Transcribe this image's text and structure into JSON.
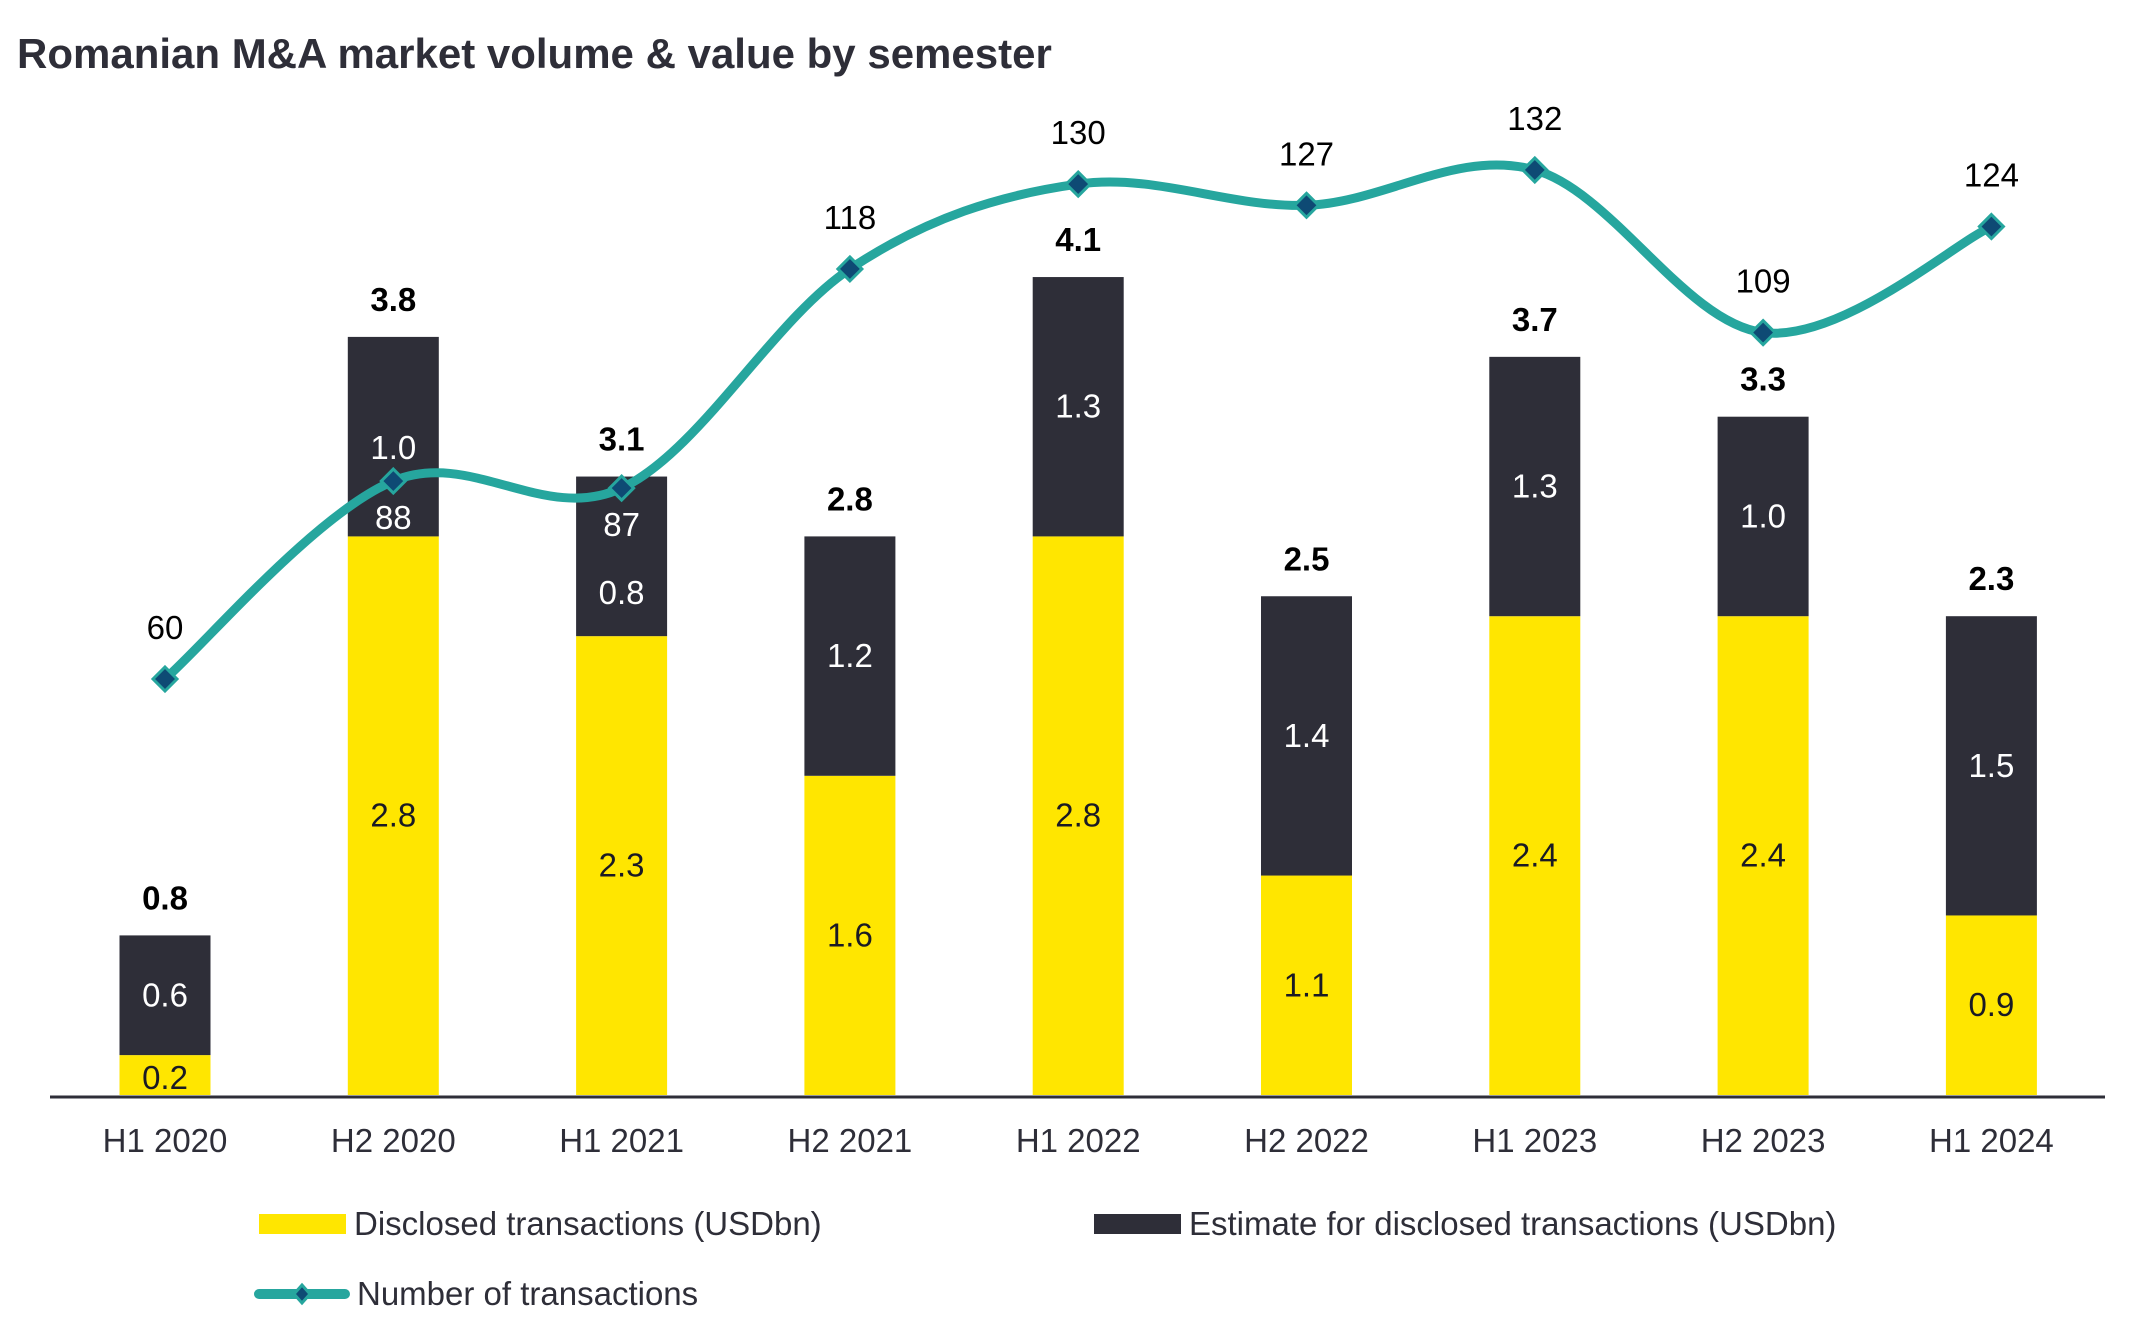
{
  "chart_data": {
    "type": "bar",
    "title": "Romanian M&A market volume & value by semester",
    "xlabel": "",
    "ylabel": "",
    "categories": [
      "H1 2020",
      "H2 2020",
      "H1 2021",
      "H2 2021",
      "H1 2022",
      "H2 2022",
      "H1 2023",
      "H2 2023",
      "H1 2024"
    ],
    "series": [
      {
        "name": "Disclosed transactions (USDbn)",
        "kind": "stacked-bar",
        "color": "#ffe600",
        "values": [
          0.2,
          2.8,
          2.3,
          1.6,
          2.8,
          1.1,
          2.4,
          2.4,
          0.9
        ]
      },
      {
        "name": "Estimate for disclosed transactions (USDbn)",
        "kind": "stacked-bar",
        "color": "#2e2e38",
        "values": [
          0.6,
          1.0,
          0.8,
          1.2,
          1.3,
          1.4,
          1.3,
          1.0,
          1.5
        ]
      },
      {
        "name": "Number of transactions",
        "kind": "line",
        "color": "#26a69e",
        "marker_color": "#0e4a74",
        "values": [
          60,
          88,
          87,
          118,
          130,
          127,
          132,
          109,
          124
        ]
      }
    ],
    "totals": [
      "0.8",
      "3.8",
      "3.1",
      "2.8",
      "4.1",
      "2.5",
      "3.7",
      "3.3",
      "2.3"
    ],
    "bar_labels": {
      "disclosed": [
        "0.2",
        "2.8",
        "2.3",
        "1.6",
        "2.8",
        "1.1",
        "2.4",
        "2.4",
        "0.9"
      ],
      "estimate": [
        "0.6",
        "1.0",
        "0.8",
        "1.2",
        "1.3",
        "1.4",
        "1.3",
        "1.0",
        "1.5"
      ]
    },
    "line_labels": [
      "60",
      "88",
      "87",
      "118",
      "130",
      "127",
      "132",
      "109",
      "124"
    ],
    "grid": false,
    "legend_position": "bottom"
  },
  "legend": {
    "disclosed": "Disclosed transactions (USDbn)",
    "estimate": "Estimate for disclosed transactions (USDbn)",
    "count": "Number of transactions"
  }
}
